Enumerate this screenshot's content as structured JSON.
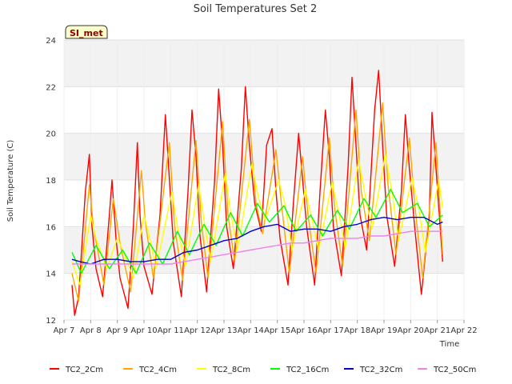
{
  "chart_data": {
    "type": "line",
    "title": "Soil Temperatures Set 2",
    "xlabel": "Time",
    "ylabel": "Soil Temperature (C)",
    "badge": "SI_met",
    "xlim": [
      0,
      15
    ],
    "ylim": [
      12,
      24
    ],
    "x_tick_labels": [
      "Apr 7",
      "Apr 8",
      "Apr 9",
      "Apr 10",
      "Apr 11",
      "Apr 12",
      "Apr 13",
      "Apr 14",
      "Apr 15",
      "Apr 16",
      "Apr 17",
      "Apr 18",
      "Apr 19",
      "Apr 20",
      "Apr 21",
      "Apr 22"
    ],
    "y_ticks": [
      12,
      14,
      16,
      18,
      20,
      22,
      24
    ],
    "grid": true,
    "legend_position": "bottom",
    "series": [
      {
        "name": "TC2_2Cm",
        "color": "#ff0000",
        "x": [
          0.3,
          0.4,
          0.55,
          0.8,
          0.95,
          1.05,
          1.2,
          1.45,
          1.7,
          1.8,
          1.95,
          2.1,
          2.4,
          2.6,
          2.75,
          2.85,
          3.0,
          3.3,
          3.6,
          3.8,
          3.9,
          4.1,
          4.4,
          4.65,
          4.8,
          4.95,
          5.1,
          5.35,
          5.65,
          5.8,
          5.95,
          6.1,
          6.35,
          6.65,
          6.8,
          6.95,
          7.15,
          7.4,
          7.6,
          7.8,
          7.95,
          8.1,
          8.4,
          8.6,
          8.8,
          8.95,
          9.1,
          9.4,
          9.6,
          9.8,
          9.95,
          10.1,
          10.4,
          10.65,
          10.8,
          10.95,
          11.1,
          11.35,
          11.65,
          11.8,
          11.95,
          12.1,
          12.4,
          12.65,
          12.8,
          12.95,
          13.15,
          13.4,
          13.7,
          13.8,
          13.95,
          14.2
        ],
        "y": [
          13.5,
          12.2,
          13.0,
          17.5,
          19.1,
          16.0,
          14.2,
          13.0,
          16.5,
          18.0,
          15.5,
          13.8,
          12.5,
          16.0,
          19.6,
          16.5,
          14.3,
          13.1,
          16.5,
          20.8,
          19.0,
          15.3,
          13.0,
          17.5,
          21.0,
          19.0,
          15.6,
          13.2,
          18.0,
          21.9,
          19.5,
          16.0,
          14.2,
          18.5,
          22.0,
          19.5,
          17.0,
          15.8,
          19.5,
          20.2,
          17.5,
          15.5,
          13.5,
          17.0,
          20.0,
          18.0,
          16.0,
          13.5,
          17.5,
          21.0,
          19.0,
          16.0,
          13.9,
          18.5,
          22.4,
          19.5,
          16.5,
          15.0,
          21.0,
          22.7,
          19.5,
          16.5,
          14.3,
          17.5,
          20.8,
          18.5,
          16.0,
          13.1,
          16.5,
          20.9,
          18.5,
          14.5
        ]
      },
      {
        "name": "TC2_4Cm",
        "color": "#ffa500",
        "x": [
          0.3,
          0.55,
          0.95,
          1.1,
          1.5,
          1.85,
          2.1,
          2.5,
          2.9,
          3.05,
          3.35,
          3.95,
          4.15,
          4.45,
          4.95,
          5.15,
          5.4,
          5.95,
          6.15,
          6.4,
          6.95,
          7.2,
          7.45,
          7.95,
          8.15,
          8.45,
          8.95,
          9.15,
          9.45,
          9.95,
          10.15,
          10.45,
          10.95,
          11.15,
          11.45,
          11.95,
          12.15,
          12.45,
          12.95,
          13.15,
          13.45,
          13.95,
          14.2
        ],
        "y": [
          14.0,
          12.8,
          17.8,
          16.0,
          13.5,
          17.2,
          15.3,
          13.2,
          18.4,
          16.2,
          13.8,
          19.6,
          16.0,
          13.7,
          19.7,
          16.2,
          13.8,
          20.5,
          16.5,
          14.5,
          20.6,
          17.0,
          15.7,
          19.3,
          17.0,
          14.0,
          19.0,
          16.5,
          14.0,
          19.8,
          16.8,
          14.3,
          21.0,
          17.5,
          15.4,
          21.3,
          17.8,
          14.8,
          19.8,
          17.0,
          13.8,
          19.6,
          14.8
        ]
      },
      {
        "name": "TC2_8Cm",
        "color": "#ffff00",
        "x": [
          0.3,
          0.6,
          1.0,
          1.2,
          1.6,
          2.0,
          2.2,
          2.6,
          3.0,
          3.2,
          3.45,
          4.05,
          4.25,
          4.55,
          5.05,
          5.25,
          5.5,
          6.05,
          6.25,
          6.5,
          7.05,
          7.3,
          7.55,
          8.05,
          8.3,
          8.55,
          9.05,
          9.3,
          9.55,
          10.05,
          10.3,
          10.55,
          11.05,
          11.3,
          11.55,
          12.05,
          12.3,
          12.55,
          13.05,
          13.3,
          13.55,
          14.05,
          14.2
        ],
        "y": [
          14.5,
          13.5,
          16.5,
          15.5,
          14.2,
          15.5,
          15.0,
          13.8,
          16.5,
          15.6,
          14.2,
          17.5,
          16.0,
          14.3,
          17.8,
          16.3,
          14.5,
          18.3,
          16.6,
          15.0,
          18.7,
          17.2,
          16.3,
          18.0,
          16.9,
          15.0,
          17.6,
          16.3,
          15.0,
          17.9,
          16.6,
          15.1,
          18.9,
          17.3,
          15.9,
          19.1,
          17.5,
          15.4,
          18.1,
          16.8,
          14.9,
          18.0,
          16.8
        ]
      },
      {
        "name": "TC2_16Cm",
        "color": "#00ff00",
        "x": [
          0.3,
          0.65,
          1.2,
          1.7,
          2.2,
          2.7,
          3.2,
          3.7,
          4.25,
          4.7,
          5.25,
          5.7,
          6.25,
          6.7,
          7.25,
          7.7,
          8.25,
          8.7,
          9.25,
          9.7,
          10.25,
          10.7,
          11.25,
          11.7,
          12.25,
          12.7,
          13.25,
          13.7,
          14.2
        ],
        "y": [
          14.9,
          14.0,
          15.2,
          14.2,
          15.0,
          14.0,
          15.3,
          14.4,
          15.8,
          14.8,
          16.1,
          15.2,
          16.6,
          15.6,
          17.0,
          16.2,
          16.9,
          15.8,
          16.5,
          15.6,
          16.7,
          15.9,
          17.2,
          16.4,
          17.6,
          16.6,
          17.0,
          16.0,
          16.5
        ]
      },
      {
        "name": "TC2_32Cm",
        "color": "#0000cc",
        "x": [
          0.3,
          0.6,
          1.0,
          1.5,
          2.0,
          2.5,
          3.0,
          3.5,
          4.0,
          4.5,
          5.0,
          5.5,
          6.0,
          6.5,
          7.0,
          7.5,
          8.0,
          8.5,
          9.0,
          9.5,
          10.0,
          10.5,
          11.0,
          11.5,
          12.0,
          12.5,
          13.0,
          13.5,
          14.0,
          14.2
        ],
        "y": [
          14.6,
          14.5,
          14.4,
          14.6,
          14.6,
          14.5,
          14.5,
          14.6,
          14.6,
          14.9,
          15.0,
          15.2,
          15.4,
          15.5,
          15.8,
          16.0,
          16.1,
          15.8,
          15.9,
          15.9,
          15.8,
          16.0,
          16.1,
          16.3,
          16.4,
          16.3,
          16.4,
          16.4,
          16.1,
          16.2
        ]
      },
      {
        "name": "TC2_50Cm",
        "color": "#ee82ee",
        "x": [
          0.3,
          1.0,
          2.0,
          3.0,
          4.0,
          4.5,
          5.0,
          5.5,
          6.0,
          6.5,
          7.0,
          7.5,
          8.0,
          8.5,
          9.0,
          9.5,
          10.0,
          10.5,
          11.0,
          11.5,
          12.0,
          12.5,
          13.0,
          13.5,
          14.0,
          14.2
        ],
        "y": [
          14.4,
          14.4,
          14.4,
          14.4,
          14.4,
          14.5,
          14.6,
          14.7,
          14.8,
          14.9,
          15.0,
          15.1,
          15.2,
          15.3,
          15.3,
          15.4,
          15.5,
          15.5,
          15.5,
          15.6,
          15.6,
          15.7,
          15.8,
          15.8,
          15.8,
          15.8
        ]
      }
    ]
  }
}
